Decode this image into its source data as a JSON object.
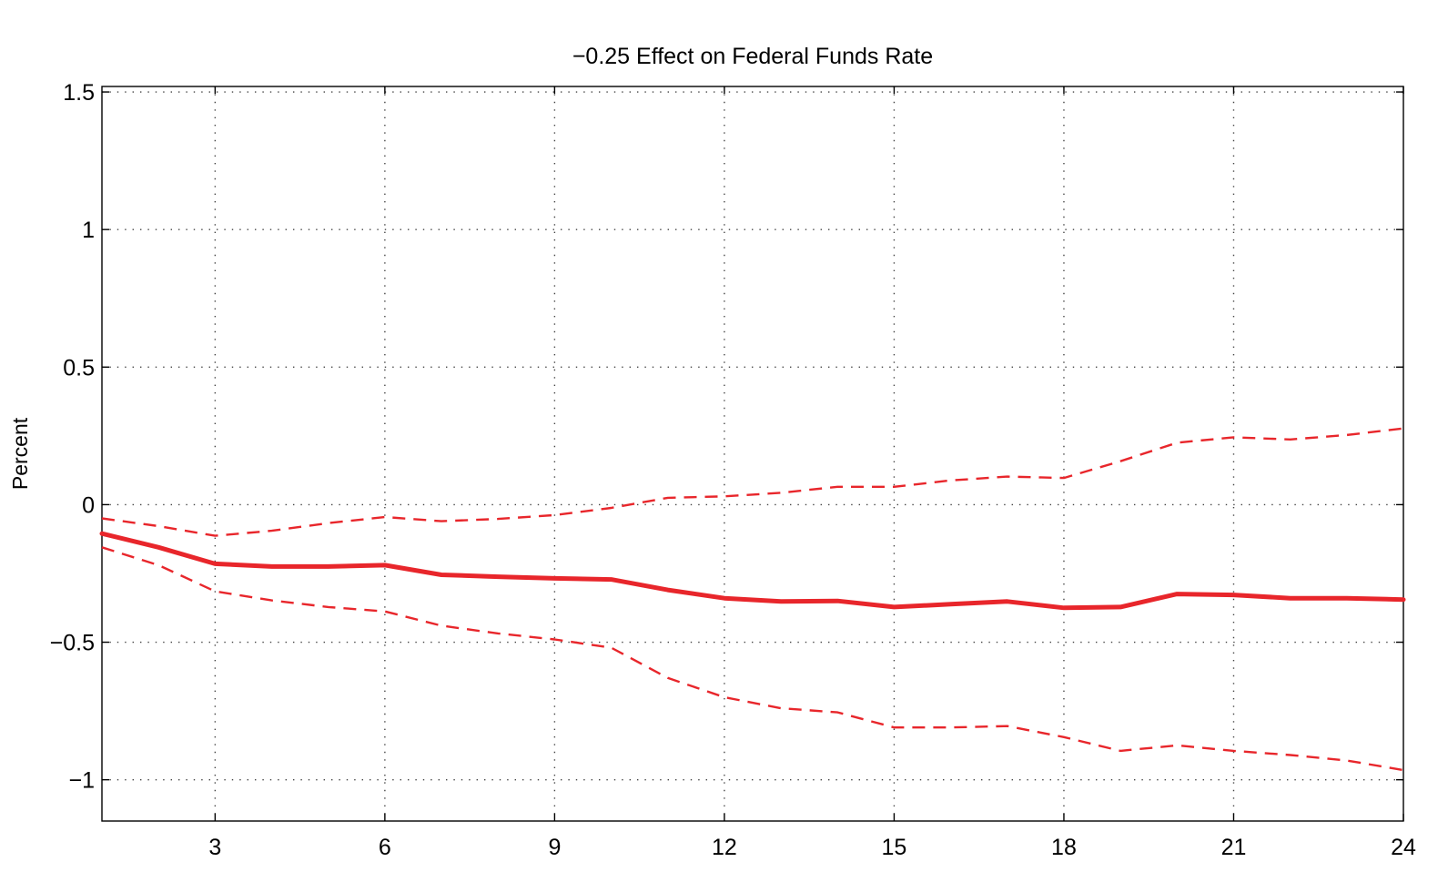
{
  "chart_data": {
    "type": "line",
    "title": "−0.25 Effect on Federal Funds Rate",
    "xlabel": "",
    "ylabel": "Percent",
    "xlim": [
      1,
      24
    ],
    "ylim": [
      -1.15,
      1.52
    ],
    "grid": true,
    "x_ticks": [
      3,
      6,
      9,
      12,
      15,
      18,
      21,
      24
    ],
    "x_tick_labels": [
      "3",
      "6",
      "9",
      "12",
      "15",
      "18",
      "21",
      "24"
    ],
    "y_ticks": [
      1.5,
      1,
      0.5,
      0,
      -0.5,
      -1
    ],
    "y_tick_labels": [
      "1.5",
      "1",
      "0.5",
      "0",
      "−0.5",
      "−1"
    ],
    "x": [
      1,
      2,
      3,
      4,
      5,
      6,
      7,
      8,
      9,
      10,
      11,
      12,
      13,
      14,
      15,
      16,
      17,
      18,
      19,
      20,
      21,
      22,
      23,
      24
    ],
    "series": [
      {
        "role": "estimate",
        "style": "solid",
        "color": "#e8262b",
        "values": [
          -0.105,
          -0.155,
          -0.215,
          -0.225,
          -0.225,
          -0.22,
          -0.255,
          -0.262,
          -0.268,
          -0.272,
          -0.31,
          -0.34,
          -0.352,
          -0.35,
          -0.372,
          -0.362,
          -0.352,
          -0.375,
          -0.372,
          -0.325,
          -0.328,
          -0.34,
          -0.34,
          -0.345
        ]
      },
      {
        "role": "upper-band",
        "style": "dashed",
        "color": "#e8262b",
        "values": [
          -0.05,
          -0.078,
          -0.113,
          -0.095,
          -0.067,
          -0.045,
          -0.06,
          -0.052,
          -0.038,
          -0.012,
          0.025,
          0.03,
          0.043,
          0.065,
          0.065,
          0.088,
          0.102,
          0.097,
          0.158,
          0.225,
          0.245,
          0.237,
          0.253,
          0.277
        ]
      },
      {
        "role": "lower-band",
        "style": "dashed",
        "color": "#e8262b",
        "values": [
          -0.155,
          -0.22,
          -0.315,
          -0.348,
          -0.372,
          -0.388,
          -0.44,
          -0.468,
          -0.49,
          -0.52,
          -0.63,
          -0.7,
          -0.74,
          -0.755,
          -0.81,
          -0.81,
          -0.805,
          -0.845,
          -0.895,
          -0.875,
          -0.895,
          -0.91,
          -0.93,
          -0.965
        ]
      }
    ]
  }
}
